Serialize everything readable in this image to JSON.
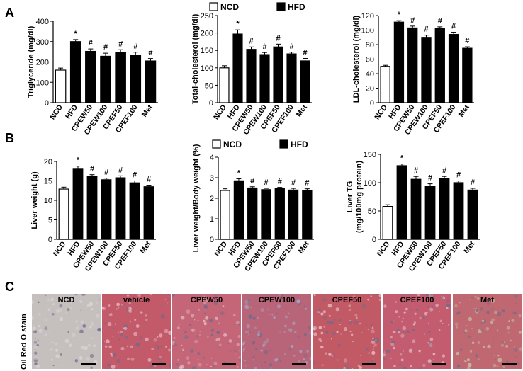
{
  "panels": {
    "a": "A",
    "b": "B",
    "c": "C"
  },
  "legend": {
    "ncd": "NCD",
    "hfd": "HFD"
  },
  "colors": {
    "ncd_fill": "#ffffff",
    "hfd_fill": "#000000",
    "stroke": "#000000"
  },
  "stain": {
    "ylabel": "Oil Red O stain",
    "images": [
      {
        "label": "NCD",
        "base": "#c5bfbe",
        "spot": "#d9d6d4"
      },
      {
        "label": "vehicle",
        "base": "#c25a6a",
        "spot": "#e6b5bf"
      },
      {
        "label": "CPEW50",
        "base": "#c46678",
        "spot": "#e3bdc4"
      },
      {
        "label": "CPEW100",
        "base": "#b8657a",
        "spot": "#a8a6c4"
      },
      {
        "label": "CPEF50",
        "base": "#c25a66",
        "spot": "#e8c2c6"
      },
      {
        "label": "CPEF100",
        "base": "#c45c70",
        "spot": "#e6c0c8"
      },
      {
        "label": "Met",
        "base": "#c06872",
        "spot": "#c6c3a8"
      }
    ]
  },
  "chart_data": [
    {
      "type": "bar",
      "ylabel": "Triglyceride (mg/dl)",
      "ylim": [
        0,
        400
      ],
      "yticks": [
        "0",
        "100",
        "200",
        "300",
        "400"
      ],
      "categories": [
        "NCD",
        "HFD",
        "CPEW50",
        "CPEW100",
        "CPEF50",
        "CPEF100",
        "Met"
      ],
      "values": [
        160,
        300,
        252,
        228,
        245,
        233,
        205
      ],
      "errors": [
        10,
        10,
        12,
        15,
        15,
        15,
        12
      ],
      "marks": [
        "",
        "*",
        "#",
        "#",
        "#",
        "#",
        "#"
      ]
    },
    {
      "type": "bar",
      "ylabel": "Total-cholesterol (mg/dl)",
      "ylim": [
        0,
        250
      ],
      "yticks": [
        "0",
        "50",
        "100",
        "150",
        "200",
        "250"
      ],
      "categories": [
        "NCD",
        "HFD",
        "CPEW50",
        "CPEW100",
        "CPEF50",
        "CPEF100",
        "Met"
      ],
      "values": [
        100,
        197,
        153,
        138,
        160,
        140,
        120
      ],
      "errors": [
        6,
        12,
        7,
        6,
        8,
        5,
        7
      ],
      "marks": [
        "",
        "*",
        "#",
        "#",
        "#",
        "#",
        "#"
      ]
    },
    {
      "type": "bar",
      "ylabel": "LDL-cholesterol (mg/dl)",
      "ylim": [
        0,
        120
      ],
      "yticks": [
        "0",
        "20",
        "40",
        "60",
        "80",
        "100",
        "120"
      ],
      "categories": [
        "NCD",
        "HFD",
        "CPEW50",
        "CPEW100",
        "CPEF50",
        "CPEF100",
        "Met"
      ],
      "values": [
        50,
        111,
        103,
        90,
        102,
        94,
        75
      ],
      "errors": [
        1.5,
        2,
        2.5,
        3,
        2.5,
        3,
        2
      ],
      "marks": [
        "",
        "*",
        "#",
        "#",
        "#",
        "#",
        "#"
      ]
    },
    {
      "type": "bar",
      "ylabel": "Liver weight (g)",
      "ylim": [
        0,
        20
      ],
      "yticks": [
        "0",
        "5",
        "10",
        "15",
        "20"
      ],
      "categories": [
        "NCD",
        "HFD",
        "CPEW50",
        "CPEW100",
        "CPEF50",
        "CPEF100",
        "Met"
      ],
      "values": [
        12.9,
        18.2,
        16.2,
        15.3,
        15.8,
        14.5,
        13.5
      ],
      "errors": [
        0.5,
        0.6,
        0.4,
        0.4,
        0.5,
        0.5,
        0.4
      ],
      "marks": [
        "",
        "*",
        "#",
        "#",
        "#",
        "#",
        "#"
      ]
    },
    {
      "type": "bar",
      "ylabel": "Liver weight/Body weight (%)",
      "ylim": [
        0,
        4
      ],
      "yticks": [
        "0",
        "1",
        "2",
        "3",
        "4"
      ],
      "categories": [
        "NCD",
        "HFD",
        "CPEW50",
        "CPEW100",
        "CPEF50",
        "CPEF100",
        "Met"
      ],
      "values": [
        2.38,
        2.85,
        2.5,
        2.42,
        2.47,
        2.4,
        2.36
      ],
      "errors": [
        0.08,
        0.1,
        0.06,
        0.06,
        0.06,
        0.08,
        0.1
      ],
      "marks": [
        "",
        "*",
        "#",
        "#",
        "#",
        "#",
        "#"
      ]
    },
    {
      "type": "bar",
      "ylabel": "Liver TG (mg/100mg protein)",
      "ylim": [
        0,
        150
      ],
      "yticks": [
        "0",
        "50",
        "100",
        "150"
      ],
      "categories": [
        "NCD",
        "HFD",
        "CPEW50",
        "CPEW100",
        "CPEF50",
        "CPEF100",
        "Met"
      ],
      "values": [
        58,
        130,
        106,
        94,
        108,
        100,
        87
      ],
      "errors": [
        3,
        3,
        5,
        4,
        3,
        3,
        3
      ],
      "marks": [
        "",
        "*",
        "#",
        "#",
        "#",
        "#",
        "#"
      ]
    }
  ]
}
